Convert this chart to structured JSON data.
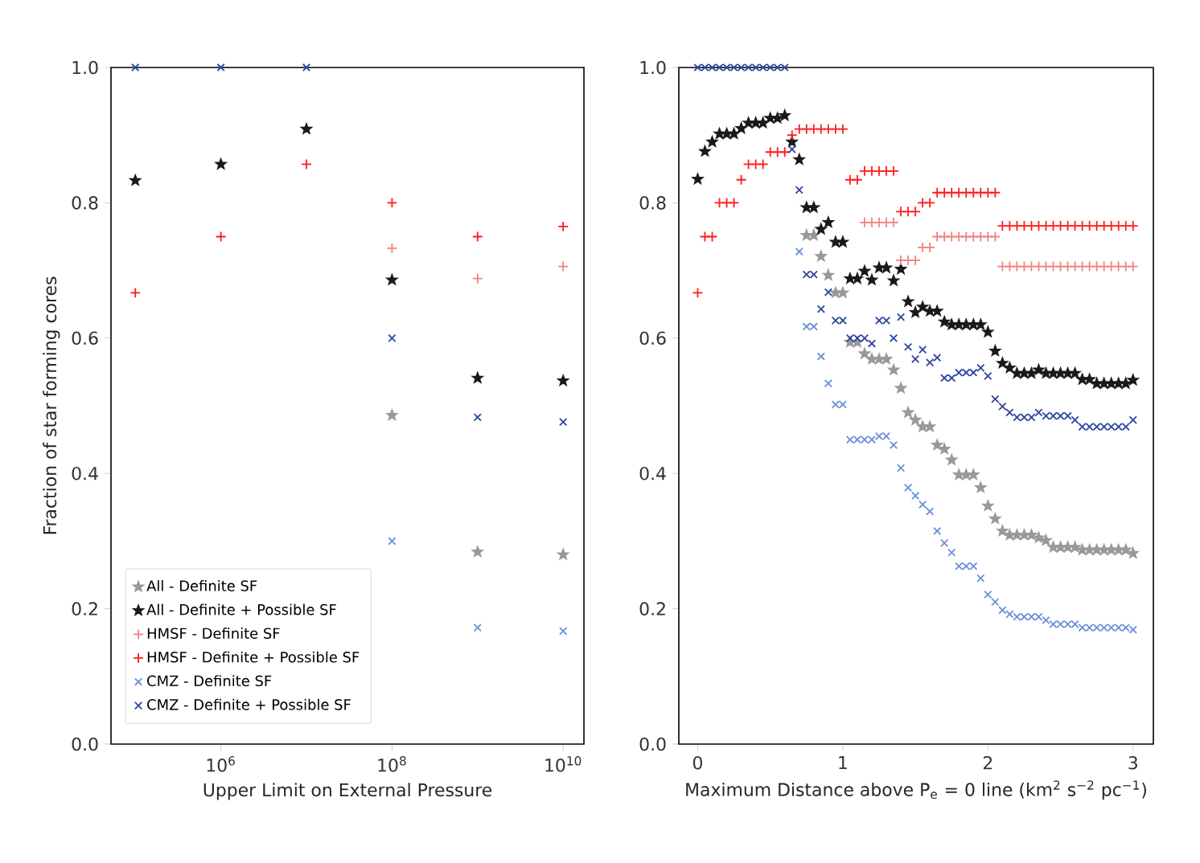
{
  "chart_data": [
    {
      "type": "scatter",
      "xlabel": "Upper Limit on External Pressure",
      "ylabel": "Fraction of star forming cores",
      "log": "x",
      "legend": "bottom left",
      "x": [
        100000,
        1000000,
        10000000,
        100000000,
        1000000000,
        10000000000
      ],
      "xlim": [
        52000,
        17500000000
      ],
      "ylim": [
        0,
        1
      ],
      "xticks": [
        {
          "value": 1000000,
          "label": "10$^{6}$"
        },
        {
          "value": 100000000,
          "label": "10$^{8}$"
        },
        {
          "value": 10000000000,
          "label": "10$^{10}$"
        }
      ],
      "yticks": [
        {
          "value": 0,
          "label": "0.0"
        },
        {
          "value": 0.2,
          "label": "0.2"
        },
        {
          "value": 0.4,
          "label": "0.4"
        },
        {
          "value": 0.6,
          "label": "0.6"
        },
        {
          "value": 0.8,
          "label": "0.8"
        },
        {
          "value": 1,
          "label": "1.0"
        }
      ],
      "series": [
        {
          "name": "All - Definite SF",
          "color": "#999999",
          "marker": "star",
          "values": [
            null,
            null,
            null,
            0.486,
            0.284,
            0.28
          ]
        },
        {
          "name": "All - Definite + Possible SF",
          "color": "#1a1a1a",
          "marker": "star",
          "values": [
            0.833,
            0.857,
            0.909,
            0.686,
            0.541,
            0.537
          ]
        },
        {
          "name": "HMSF - Definite SF",
          "color": "#f08080",
          "marker": "plus",
          "values": [
            null,
            null,
            null,
            0.733,
            0.688,
            0.706
          ]
        },
        {
          "name": "HMSF - Definite + Possible SF",
          "color": "#ff1a1a",
          "marker": "plus",
          "values": [
            0.667,
            0.75,
            0.857,
            0.8,
            0.75,
            0.765
          ]
        },
        {
          "name": "CMZ - Definite SF",
          "color": "#6a8fd6",
          "marker": "cross",
          "values": [
            null,
            null,
            null,
            0.3,
            0.172,
            0.167
          ]
        },
        {
          "name": "CMZ - Definite + Possible SF",
          "color": "#2c44a0",
          "marker": "cross",
          "values": [
            1.0,
            1.0,
            1.0,
            0.6,
            0.483,
            0.476
          ]
        }
      ]
    },
    {
      "type": "scatter",
      "xlabel": "Maximum Distance above P$_{e}$ = 0 line (km$^{2}$ s$^{−2}$ pc$^{−1}$)",
      "x": [
        0,
        0.05,
        0.1,
        0.15,
        0.2,
        0.25,
        0.3,
        0.35,
        0.4,
        0.45,
        0.5,
        0.55,
        0.6,
        0.65,
        0.7,
        0.75,
        0.8,
        0.85,
        0.9,
        0.95,
        1.0,
        1.05,
        1.1,
        1.15,
        1.2,
        1.25,
        1.3,
        1.35,
        1.4,
        1.45,
        1.5,
        1.55,
        1.6,
        1.65,
        1.7,
        1.75,
        1.8,
        1.85,
        1.9,
        1.95,
        2.0,
        2.05,
        2.1,
        2.15,
        2.2,
        2.25,
        2.3,
        2.35,
        2.4,
        2.45,
        2.5,
        2.55,
        2.6,
        2.65,
        2.7,
        2.75,
        2.8,
        2.85,
        2.9,
        2.95,
        3.0
      ],
      "xlim": [
        -0.13,
        3.14
      ],
      "ylim": [
        0,
        1
      ],
      "xticks": [
        0,
        1,
        2,
        3
      ],
      "yticks": [
        {
          "value": 0,
          "label": "0.0"
        },
        {
          "value": 0.2,
          "label": "0.2"
        },
        {
          "value": 0.4,
          "label": "0.4"
        },
        {
          "value": 0.6,
          "label": "0.6"
        },
        {
          "value": 0.8,
          "label": "0.8"
        },
        {
          "value": 1,
          "label": "1.0"
        }
      ],
      "series": [
        {
          "color": "#999999",
          "marker": "star",
          "values": [
            null,
            null,
            null,
            null,
            null,
            null,
            null,
            null,
            null,
            null,
            null,
            null,
            null,
            null,
            null,
            0.752,
            0.752,
            0.721,
            0.693,
            0.667,
            0.667,
            0.594,
            0.594,
            0.577,
            0.569,
            0.569,
            0.569,
            0.553,
            0.526,
            0.49,
            0.479,
            0.469,
            0.469,
            0.442,
            0.436,
            0.42,
            0.398,
            0.398,
            0.398,
            0.379,
            0.352,
            0.333,
            0.315,
            0.309,
            0.309,
            0.309,
            0.309,
            0.305,
            0.301,
            0.291,
            0.291,
            0.291,
            0.291,
            0.287,
            0.287,
            0.287,
            0.287,
            0.287,
            0.287,
            0.287,
            0.282
          ]
        },
        {
          "color": "#1a1a1a",
          "marker": "star",
          "values": [
            0.835,
            0.876,
            0.89,
            0.902,
            0.902,
            0.902,
            0.91,
            0.918,
            0.918,
            0.918,
            0.925,
            0.925,
            0.929,
            0.89,
            0.864,
            0.793,
            0.793,
            0.761,
            0.771,
            0.742,
            0.742,
            0.688,
            0.688,
            0.699,
            0.686,
            0.704,
            0.704,
            0.685,
            0.702,
            0.654,
            0.638,
            0.646,
            0.64,
            0.64,
            0.624,
            0.62,
            0.62,
            0.62,
            0.62,
            0.62,
            0.609,
            0.581,
            0.563,
            0.556,
            0.548,
            0.548,
            0.548,
            0.553,
            0.548,
            0.548,
            0.548,
            0.548,
            0.548,
            0.539,
            0.539,
            0.533,
            0.533,
            0.533,
            0.533,
            0.533,
            0.538
          ]
        },
        {
          "color": "#f08080",
          "marker": "plus",
          "values": [
            null,
            null,
            null,
            null,
            null,
            null,
            null,
            null,
            null,
            null,
            null,
            null,
            null,
            null,
            null,
            null,
            null,
            null,
            null,
            null,
            null,
            null,
            null,
            0.771,
            0.771,
            0.771,
            0.771,
            0.771,
            0.715,
            0.715,
            0.715,
            0.734,
            0.734,
            0.75,
            0.75,
            0.75,
            0.75,
            0.75,
            0.75,
            0.75,
            0.75,
            0.75,
            0.706,
            0.706,
            0.706,
            0.706,
            0.706,
            0.706,
            0.706,
            0.706,
            0.706,
            0.706,
            0.706,
            0.706,
            0.706,
            0.706,
            0.706,
            0.706,
            0.706,
            0.706,
            0.706
          ]
        },
        {
          "color": "#ff1a1a",
          "marker": "plus",
          "values": [
            0.667,
            0.75,
            0.75,
            0.8,
            0.8,
            0.8,
            0.834,
            0.857,
            0.857,
            0.857,
            0.875,
            0.875,
            0.875,
            0.9,
            0.909,
            0.909,
            0.909,
            0.909,
            0.909,
            0.909,
            0.909,
            0.834,
            0.834,
            0.847,
            0.847,
            0.847,
            0.847,
            0.847,
            0.787,
            0.787,
            0.787,
            0.8,
            0.8,
            0.815,
            0.815,
            0.815,
            0.815,
            0.815,
            0.815,
            0.815,
            0.815,
            0.815,
            0.766,
            0.766,
            0.766,
            0.766,
            0.766,
            0.766,
            0.766,
            0.766,
            0.766,
            0.766,
            0.766,
            0.766,
            0.766,
            0.766,
            0.766,
            0.766,
            0.766,
            0.766,
            0.766
          ]
        },
        {
          "color": "#6a8fd6",
          "marker": "cross",
          "values": [
            null,
            null,
            null,
            null,
            null,
            null,
            null,
            null,
            null,
            null,
            null,
            null,
            null,
            null,
            0.728,
            0.617,
            0.617,
            0.573,
            0.533,
            0.502,
            0.502,
            0.45,
            0.45,
            0.45,
            0.45,
            0.455,
            0.455,
            0.442,
            0.408,
            0.379,
            0.367,
            0.354,
            0.344,
            0.315,
            0.297,
            0.283,
            0.263,
            0.263,
            0.263,
            0.245,
            0.221,
            0.21,
            0.198,
            0.192,
            0.188,
            0.188,
            0.188,
            0.188,
            0.183,
            0.177,
            0.177,
            0.177,
            0.177,
            0.172,
            0.172,
            0.172,
            0.172,
            0.172,
            0.172,
            0.172,
            0.169
          ]
        },
        {
          "color": "#2c44a0",
          "marker": "cross",
          "values": [
            1.0,
            1.0,
            1.0,
            1.0,
            1.0,
            1.0,
            1.0,
            1.0,
            1.0,
            1.0,
            1.0,
            1.0,
            1.0,
            0.879,
            0.819,
            0.694,
            0.694,
            0.643,
            0.668,
            0.626,
            0.626,
            0.6,
            0.6,
            0.6,
            0.592,
            0.626,
            0.626,
            0.6,
            0.631,
            0.587,
            0.569,
            0.583,
            0.564,
            0.571,
            0.541,
            0.541,
            0.549,
            0.549,
            0.549,
            0.556,
            0.544,
            0.51,
            0.499,
            0.49,
            0.483,
            0.483,
            0.483,
            0.49,
            0.485,
            0.485,
            0.485,
            0.485,
            0.479,
            0.469,
            0.469,
            0.469,
            0.469,
            0.469,
            0.469,
            0.469,
            0.479
          ]
        }
      ]
    }
  ]
}
